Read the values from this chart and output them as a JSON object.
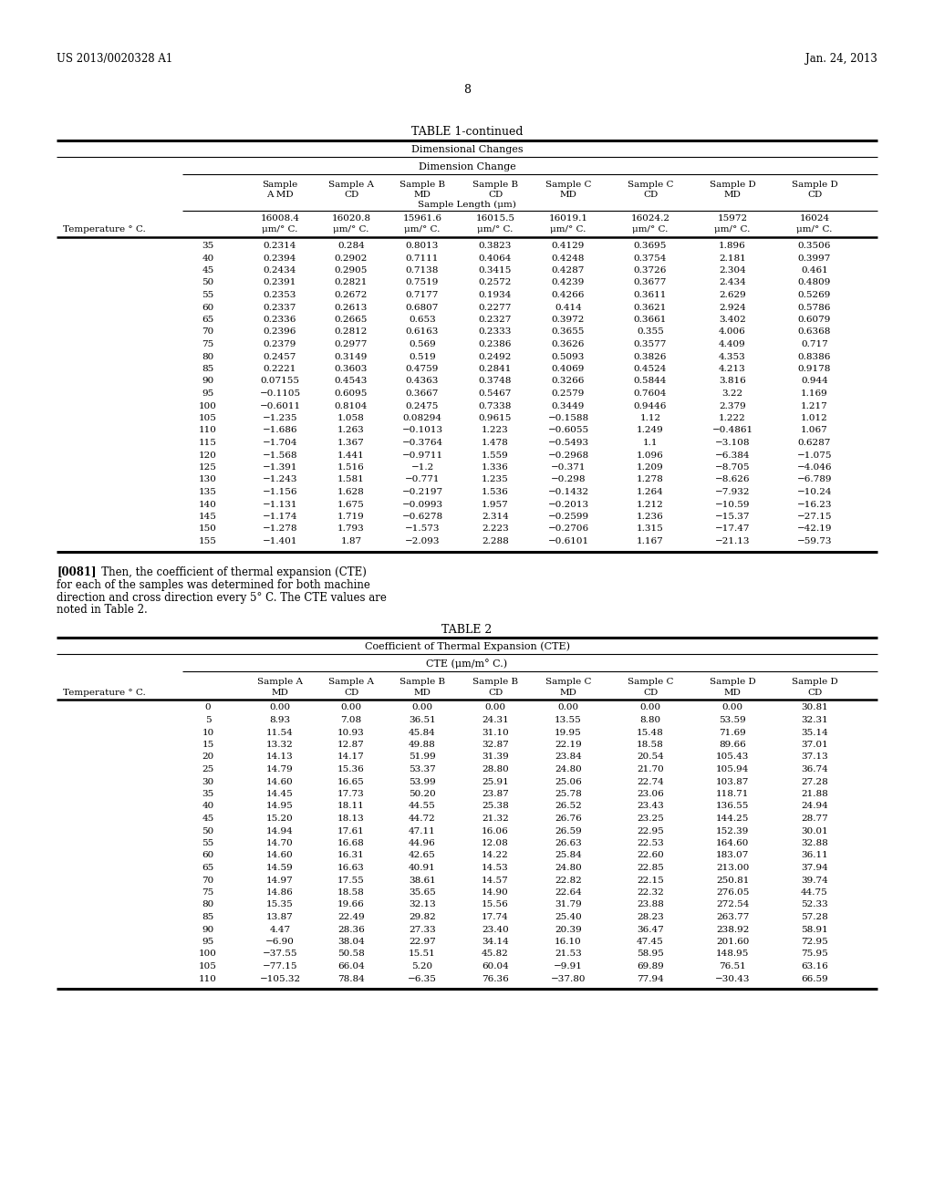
{
  "header_left": "US 2013/0020328 A1",
  "header_right": "Jan. 24, 2013",
  "page_num": "8",
  "table1_title": "TABLE 1-continued",
  "table1_header1": "Dimensional Changes",
  "table1_header2": "Dimension Change",
  "table1_col_headers": [
    "Sample\nA MD",
    "Sample A\nCD",
    "Sample B\nMD",
    "Sample B\nCD",
    "Sample C\nMD",
    "Sample C\nCD",
    "Sample D\nMD",
    "Sample D\nCD"
  ],
  "table1_sublabel": "Sample Length (μm)",
  "table1_lengths": [
    "16008.4",
    "16020.8",
    "15961.6",
    "16015.5",
    "16019.1",
    "16024.2",
    "15972",
    "16024"
  ],
  "table1_units": "μm/° C.",
  "table1_temp_label": "Temperature ° C.",
  "table1_data": [
    [
      "35",
      "0.2314",
      "0.284",
      "0.8013",
      "0.3823",
      "0.4129",
      "0.3695",
      "1.896",
      "0.3506"
    ],
    [
      "40",
      "0.2394",
      "0.2902",
      "0.7111",
      "0.4064",
      "0.4248",
      "0.3754",
      "2.181",
      "0.3997"
    ],
    [
      "45",
      "0.2434",
      "0.2905",
      "0.7138",
      "0.3415",
      "0.4287",
      "0.3726",
      "2.304",
      "0.461"
    ],
    [
      "50",
      "0.2391",
      "0.2821",
      "0.7519",
      "0.2572",
      "0.4239",
      "0.3677",
      "2.434",
      "0.4809"
    ],
    [
      "55",
      "0.2353",
      "0.2672",
      "0.7177",
      "0.1934",
      "0.4266",
      "0.3611",
      "2.629",
      "0.5269"
    ],
    [
      "60",
      "0.2337",
      "0.2613",
      "0.6807",
      "0.2277",
      "0.414",
      "0.3621",
      "2.924",
      "0.5786"
    ],
    [
      "65",
      "0.2336",
      "0.2665",
      "0.653",
      "0.2327",
      "0.3972",
      "0.3661",
      "3.402",
      "0.6079"
    ],
    [
      "70",
      "0.2396",
      "0.2812",
      "0.6163",
      "0.2333",
      "0.3655",
      "0.355",
      "4.006",
      "0.6368"
    ],
    [
      "75",
      "0.2379",
      "0.2977",
      "0.569",
      "0.2386",
      "0.3626",
      "0.3577",
      "4.409",
      "0.717"
    ],
    [
      "80",
      "0.2457",
      "0.3149",
      "0.519",
      "0.2492",
      "0.5093",
      "0.3826",
      "4.353",
      "0.8386"
    ],
    [
      "85",
      "0.2221",
      "0.3603",
      "0.4759",
      "0.2841",
      "0.4069",
      "0.4524",
      "4.213",
      "0.9178"
    ],
    [
      "90",
      "0.07155",
      "0.4543",
      "0.4363",
      "0.3748",
      "0.3266",
      "0.5844",
      "3.816",
      "0.944"
    ],
    [
      "95",
      "−0.1105",
      "0.6095",
      "0.3667",
      "0.5467",
      "0.2579",
      "0.7604",
      "3.22",
      "1.169"
    ],
    [
      "100",
      "−0.6011",
      "0.8104",
      "0.2475",
      "0.7338",
      "0.3449",
      "0.9446",
      "2.379",
      "1.217"
    ],
    [
      "105",
      "−1.235",
      "1.058",
      "0.08294",
      "0.9615",
      "−0.1588",
      "1.12",
      "1.222",
      "1.012"
    ],
    [
      "110",
      "−1.686",
      "1.263",
      "−0.1013",
      "1.223",
      "−0.6055",
      "1.249",
      "−0.4861",
      "1.067"
    ],
    [
      "115",
      "−1.704",
      "1.367",
      "−0.3764",
      "1.478",
      "−0.5493",
      "1.1",
      "−3.108",
      "0.6287"
    ],
    [
      "120",
      "−1.568",
      "1.441",
      "−0.9711",
      "1.559",
      "−0.2968",
      "1.096",
      "−6.384",
      "−1.075"
    ],
    [
      "125",
      "−1.391",
      "1.516",
      "−1.2",
      "1.336",
      "−0.371",
      "1.209",
      "−8.705",
      "−4.046"
    ],
    [
      "130",
      "−1.243",
      "1.581",
      "−0.771",
      "1.235",
      "−0.298",
      "1.278",
      "−8.626",
      "−6.789"
    ],
    [
      "135",
      "−1.156",
      "1.628",
      "−0.2197",
      "1.536",
      "−0.1432",
      "1.264",
      "−7.932",
      "−10.24"
    ],
    [
      "140",
      "−1.131",
      "1.675",
      "−0.0993",
      "1.957",
      "−0.2013",
      "1.212",
      "−10.59",
      "−16.23"
    ],
    [
      "145",
      "−1.174",
      "1.719",
      "−0.6278",
      "2.314",
      "−0.2599",
      "1.236",
      "−15.37",
      "−27.15"
    ],
    [
      "150",
      "−1.278",
      "1.793",
      "−1.573",
      "2.223",
      "−0.2706",
      "1.315",
      "−17.47",
      "−42.19"
    ],
    [
      "155",
      "−1.401",
      "1.87",
      "−2.093",
      "2.288",
      "−0.6101",
      "1.167",
      "−21.13",
      "−59.73"
    ]
  ],
  "paragraph_text": "[0081]   Then, the coefficient of thermal expansion (CTE)\nfor each of the samples was determined for both machine\ndirection and cross direction every 5° C. The CTE values are\nnoted in Table 2.",
  "table2_title": "TABLE 2",
  "table2_header1": "Coefficient of Thermal Expansion (CTE)",
  "table2_header2": "CTE (μm/m° C.)",
  "table2_col_headers": [
    "Sample A\nMD",
    "Sample A\nCD",
    "Sample B\nMD",
    "Sample B\nCD",
    "Sample C\nMD",
    "Sample C\nCD",
    "Sample D\nMD",
    "Sample D\nCD"
  ],
  "table2_temp_label": "Temperature ° C.",
  "table2_data": [
    [
      "0",
      "0.00",
      "0.00",
      "0.00",
      "0.00",
      "0.00",
      "0.00",
      "0.00",
      "30.81"
    ],
    [
      "5",
      "8.93",
      "7.08",
      "36.51",
      "24.31",
      "13.55",
      "8.80",
      "53.59",
      "32.31"
    ],
    [
      "10",
      "11.54",
      "10.93",
      "45.84",
      "31.10",
      "19.95",
      "15.48",
      "71.69",
      "35.14"
    ],
    [
      "15",
      "13.32",
      "12.87",
      "49.88",
      "32.87",
      "22.19",
      "18.58",
      "89.66",
      "37.01"
    ],
    [
      "20",
      "14.13",
      "14.17",
      "51.99",
      "31.39",
      "23.84",
      "20.54",
      "105.43",
      "37.13"
    ],
    [
      "25",
      "14.79",
      "15.36",
      "53.37",
      "28.80",
      "24.80",
      "21.70",
      "105.94",
      "36.74"
    ],
    [
      "30",
      "14.60",
      "16.65",
      "53.99",
      "25.91",
      "25.06",
      "22.74",
      "103.87",
      "27.28"
    ],
    [
      "35",
      "14.45",
      "17.73",
      "50.20",
      "23.87",
      "25.78",
      "23.06",
      "118.71",
      "21.88"
    ],
    [
      "40",
      "14.95",
      "18.11",
      "44.55",
      "25.38",
      "26.52",
      "23.43",
      "136.55",
      "24.94"
    ],
    [
      "45",
      "15.20",
      "18.13",
      "44.72",
      "21.32",
      "26.76",
      "23.25",
      "144.25",
      "28.77"
    ],
    [
      "50",
      "14.94",
      "17.61",
      "47.11",
      "16.06",
      "26.59",
      "22.95",
      "152.39",
      "30.01"
    ],
    [
      "55",
      "14.70",
      "16.68",
      "44.96",
      "12.08",
      "26.63",
      "22.53",
      "164.60",
      "32.88"
    ],
    [
      "60",
      "14.60",
      "16.31",
      "42.65",
      "14.22",
      "25.84",
      "22.60",
      "183.07",
      "36.11"
    ],
    [
      "65",
      "14.59",
      "16.63",
      "40.91",
      "14.53",
      "24.80",
      "22.85",
      "213.00",
      "37.94"
    ],
    [
      "70",
      "14.97",
      "17.55",
      "38.61",
      "14.57",
      "22.82",
      "22.15",
      "250.81",
      "39.74"
    ],
    [
      "75",
      "14.86",
      "18.58",
      "35.65",
      "14.90",
      "22.64",
      "22.32",
      "276.05",
      "44.75"
    ],
    [
      "80",
      "15.35",
      "19.66",
      "32.13",
      "15.56",
      "31.79",
      "23.88",
      "272.54",
      "52.33"
    ],
    [
      "85",
      "13.87",
      "22.49",
      "29.82",
      "17.74",
      "25.40",
      "28.23",
      "263.77",
      "57.28"
    ],
    [
      "90",
      "4.47",
      "28.36",
      "27.33",
      "23.40",
      "20.39",
      "36.47",
      "238.92",
      "58.91"
    ],
    [
      "95",
      "−6.90",
      "38.04",
      "22.97",
      "34.14",
      "16.10",
      "47.45",
      "201.60",
      "72.95"
    ],
    [
      "100",
      "−37.55",
      "50.58",
      "15.51",
      "45.82",
      "21.53",
      "58.95",
      "148.95",
      "75.95"
    ],
    [
      "105",
      "−77.15",
      "66.04",
      "5.20",
      "60.04",
      "−9.91",
      "69.89",
      "76.51",
      "63.16"
    ],
    [
      "110",
      "−105.32",
      "78.84",
      "−6.35",
      "76.36",
      "−37.80",
      "77.94",
      "−30.43",
      "66.59"
    ]
  ]
}
